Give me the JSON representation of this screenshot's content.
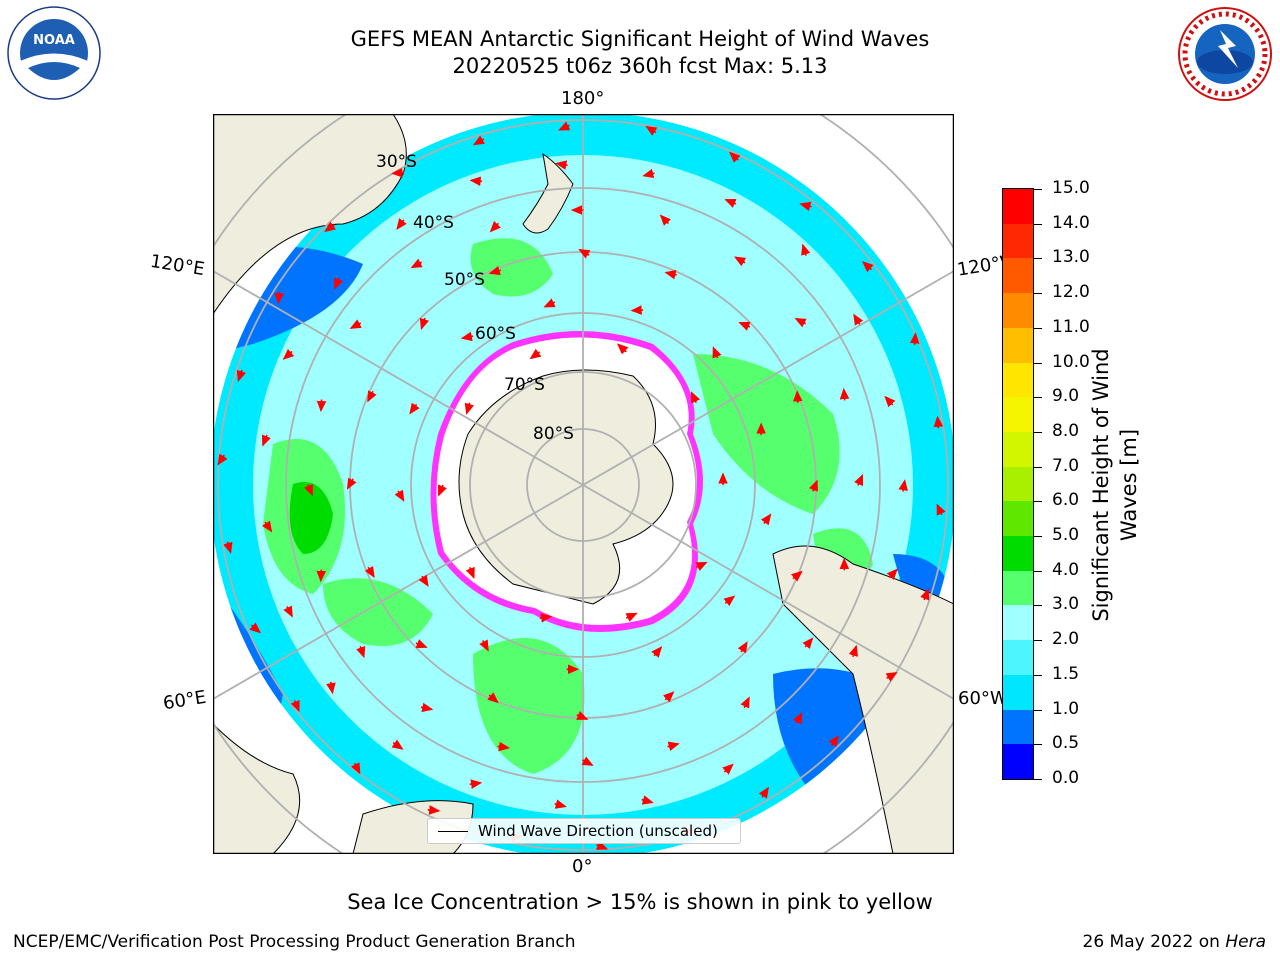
{
  "header": {
    "title_line1": "GEFS MEAN Antarctic Significant Height of Wind Waves",
    "title_line2": "20220525 t06z 360h fcst   Max: 5.13"
  },
  "logos": {
    "left": "noara-logo",
    "right": "national-weather-service-logo",
    "left_text": "NOAA",
    "right_text": "NATIONAL WEATHER SERVICE"
  },
  "map": {
    "lon_labels": {
      "top": "180°",
      "bottom": "0°",
      "upper_left": "120°E",
      "upper_right": "120°W",
      "lower_left": "60°E",
      "lower_right": "60°W"
    },
    "lat_labels": [
      "30°S",
      "40°S",
      "50°S",
      "60°S",
      "70°S",
      "80°S"
    ],
    "legend_text": "Wind Wave Direction (unscaled)"
  },
  "colorbar": {
    "title": "Significant Height of Wind Waves [m]",
    "ticks": [
      "0.0",
      "0.5",
      "1.0",
      "1.5",
      "2.0",
      "3.0",
      "4.0",
      "5.0",
      "6.0",
      "7.0",
      "8.0",
      "9.0",
      "10.0",
      "11.0",
      "12.0",
      "13.0",
      "14.0",
      "15.0"
    ],
    "colors": [
      "#0000ff",
      "#0074ff",
      "#00e6ff",
      "#4df5ff",
      "#a0ffff",
      "#55ff6e",
      "#00dc00",
      "#5ee800",
      "#a8f000",
      "#d2f500",
      "#f5f500",
      "#ffe600",
      "#ffbe00",
      "#ff8c00",
      "#ff5a00",
      "#ff2800",
      "#ff0000"
    ]
  },
  "note": "Sea Ice Concentration > 15% is shown in pink to yellow",
  "footer": {
    "left": "NCEP/EMC/Verification Post Processing Product Generation Branch",
    "right_prefix": "26 May 2022 on ",
    "right_host": "Hera"
  }
}
